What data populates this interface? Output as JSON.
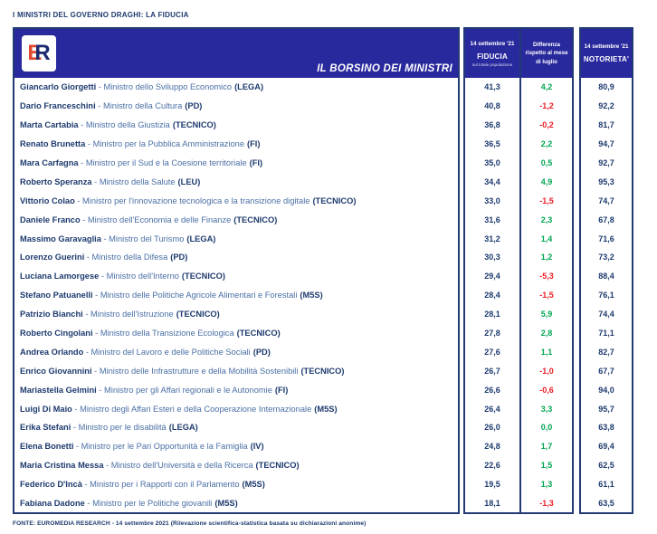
{
  "page_title": "I MINISTRI DEL GOVERNO DRAGHI: LA FIDUCIA",
  "header": {
    "logo_e": "E",
    "logo_r": "R",
    "banner": "IL BORSINO DEI MINISTRI",
    "col_fiducia": {
      "date": "14 settembre '21",
      "label": "FIDUCIA",
      "sub": "sul totale popolazione"
    },
    "col_differenza": {
      "line1": "Differenza",
      "line2": "rispetto al mese",
      "line3": "di luglio"
    },
    "col_notorieta": {
      "date": "14 settembre '21",
      "label": "NOTORIETA'"
    }
  },
  "colors": {
    "header_bg": "#29299e",
    "border": "#233a75",
    "text_navy": "#1d3a6e",
    "text_role": "#4a6fa5",
    "positive": "#00a551",
    "negative": "#ec1c24"
  },
  "footer": "FONTE: EUROMEDIA RESEARCH - 14 settembre 2021 (Rilevazione scientifica-statistica basata su dichiarazioni anonime)",
  "chart_data": {
    "type": "table",
    "title": "I MINISTRI DEL GOVERNO DRAGHI: LA FIDUCIA",
    "columns": [
      "Ministro",
      "FIDUCIA 14 settembre '21 (sul totale popolazione)",
      "Differenza rispetto al mese di luglio",
      "NOTORIETA' 14 settembre '21"
    ],
    "rows": [
      {
        "name": "Giancarlo Giorgetti",
        "role": "Ministro dello Sviluppo Economico",
        "party": "LEGA",
        "fiducia": "41,3",
        "differenza": "4,2",
        "notorieta": "80,9"
      },
      {
        "name": "Dario Franceschini",
        "role": "Ministro della Cultura",
        "party": "PD",
        "fiducia": "40,8",
        "differenza": "-1,2",
        "notorieta": "92,2"
      },
      {
        "name": "Marta Cartabia",
        "role": "Ministro della Giustizia",
        "party": "TECNICO",
        "fiducia": "36,8",
        "differenza": "-0,2",
        "notorieta": "81,7"
      },
      {
        "name": "Renato Brunetta",
        "role": "Ministro per la Pubblica Amministrazione",
        "party": "FI",
        "fiducia": "36,5",
        "differenza": "2,2",
        "notorieta": "94,7"
      },
      {
        "name": "Mara Carfagna",
        "role": "Ministro per il Sud e la Coesione territoriale",
        "party": "FI",
        "fiducia": "35,0",
        "differenza": "0,5",
        "notorieta": "92,7"
      },
      {
        "name": "Roberto Speranza",
        "role": "Ministro della Salute",
        "party": "LEU",
        "fiducia": "34,4",
        "differenza": "4,9",
        "notorieta": "95,3"
      },
      {
        "name": "Vittorio Colao",
        "role": "Ministro per l'innovazione tecnologica e la transizione digitale",
        "party": "TECNICO",
        "fiducia": "33,0",
        "differenza": "-1,5",
        "notorieta": "74,7"
      },
      {
        "name": "Daniele Franco",
        "role": "Ministro dell'Economia e delle Finanze",
        "party": "TECNICO",
        "fiducia": "31,6",
        "differenza": "2,3",
        "notorieta": "67,8"
      },
      {
        "name": "Massimo Garavaglia",
        "role": "Ministro del Turismo",
        "party": "LEGA",
        "fiducia": "31,2",
        "differenza": "1,4",
        "notorieta": "71,6"
      },
      {
        "name": "Lorenzo Guerini",
        "role": "Ministro della Difesa",
        "party": "PD",
        "fiducia": "30,3",
        "differenza": "1,2",
        "notorieta": "73,2"
      },
      {
        "name": "Luciana Lamorgese",
        "role": "Ministro dell'Interno",
        "party": "TECNICO",
        "fiducia": "29,4",
        "differenza": "-5,3",
        "notorieta": "88,4"
      },
      {
        "name": "Stefano Patuanelli",
        "role": "Ministro delle Politiche Agricole Alimentari e Forestali",
        "party": "M5S",
        "fiducia": "28,4",
        "differenza": "-1,5",
        "notorieta": "76,1"
      },
      {
        "name": "Patrizio Bianchi",
        "role": "Ministro dell'Istruzione",
        "party": "TECNICO",
        "fiducia": "28,1",
        "differenza": "5,9",
        "notorieta": "74,4"
      },
      {
        "name": "Roberto Cingolani",
        "role": "Ministro della Transizione Ecologica",
        "party": "TECNICO",
        "fiducia": "27,8",
        "differenza": "2,8",
        "notorieta": "71,1"
      },
      {
        "name": "Andrea Orlando",
        "role": "Ministro del Lavoro e delle Politiche Sociali",
        "party": "PD",
        "fiducia": "27,6",
        "differenza": "1,1",
        "notorieta": "82,7"
      },
      {
        "name": "Enrico Giovannini",
        "role": "Ministro delle Infrastrutture e della Mobilità Sostenibili",
        "party": "TECNICO",
        "fiducia": "26,7",
        "differenza": "-1,0",
        "notorieta": "67,7"
      },
      {
        "name": "Mariastella Gelmini",
        "role": "Ministro per gli Affari regionali e le Autonomie",
        "party": "FI",
        "fiducia": "26,6",
        "differenza": "-0,6",
        "notorieta": "94,0"
      },
      {
        "name": "Luigi Di Maio",
        "role": "Ministro degli Affari Esteri e della Cooperazione Internazionale",
        "party": "M5S",
        "fiducia": "26,4",
        "differenza": "3,3",
        "notorieta": "95,7"
      },
      {
        "name": "Erika Stefani",
        "role": "Ministro per le disabilità",
        "party": "LEGA",
        "fiducia": "26,0",
        "differenza": "0,0",
        "notorieta": "63,8"
      },
      {
        "name": "Elena Bonetti",
        "role": "Ministro per le Pari Opportunità e la Famiglia",
        "party": "IV",
        "fiducia": "24,8",
        "differenza": "1,7",
        "notorieta": "69,4"
      },
      {
        "name": "Maria Cristina Messa",
        "role": "Ministro dell'Università e della Ricerca",
        "party": "TECNICO",
        "fiducia": "22,6",
        "differenza": "1,5",
        "notorieta": "62,5"
      },
      {
        "name": "Federico D'Incà",
        "role": "Ministro per i Rapporti con il Parlamento",
        "party": "M5S",
        "fiducia": "19,5",
        "differenza": "1,3",
        "notorieta": "61,1"
      },
      {
        "name": "Fabiana Dadone",
        "role": "Ministro per le Politiche giovanili",
        "party": "M5S",
        "fiducia": "18,1",
        "differenza": "-1,3",
        "notorieta": "63,5"
      }
    ]
  }
}
